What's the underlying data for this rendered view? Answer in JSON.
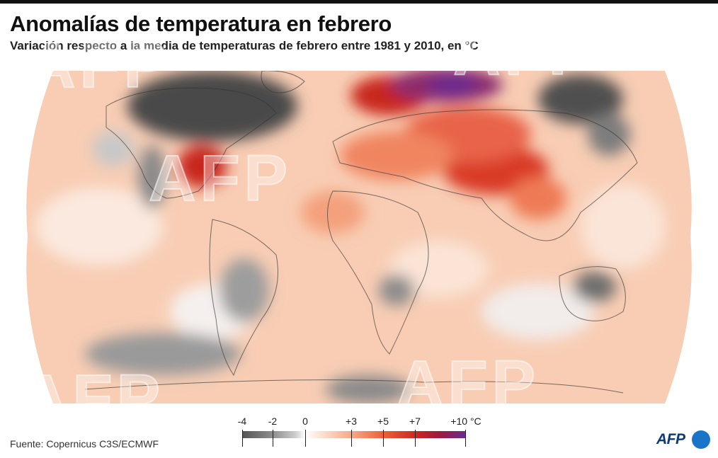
{
  "header": {
    "title": "Anomalías de temperatura en febrero",
    "subtitle": "Variación respecto a la media de temperaturas de febrero entre 1981 y 2010, en °C"
  },
  "legend": {
    "labels": [
      "-4",
      "-2",
      "0",
      "+3",
      "+5",
      "+7",
      "+10 °C"
    ],
    "values": [
      -4,
      -2,
      0,
      3,
      5,
      7,
      10
    ],
    "colors": [
      "#555555",
      "#9a9a9a",
      "#ffffff",
      "#f6a37e",
      "#e85e35",
      "#c8281f",
      "#6a2a8f"
    ]
  },
  "footer": {
    "source": "Fuente: Copernicus C3S/ECMWF",
    "logo_text": "AFP"
  },
  "watermark": {
    "text": "AFP"
  },
  "colors": {
    "ocean_base": "#f8cdb4",
    "cold_strong": "#3f3f3f",
    "cold_mild": "#a9a9a9",
    "warm_mild": "#f6a37e",
    "warm_strong": "#c8281f",
    "warm_extreme": "#6a2a8f",
    "afp_blue": "#1a74c8"
  }
}
